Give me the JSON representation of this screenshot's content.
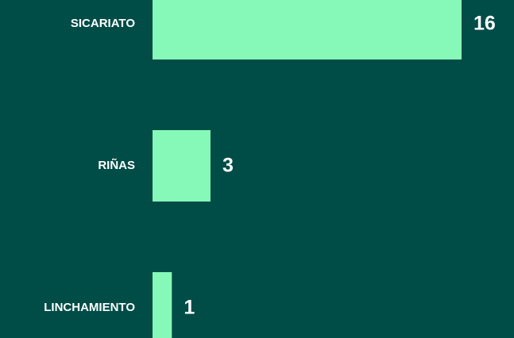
{
  "chart_data": {
    "type": "barh",
    "categories": [
      "SICARIATO",
      "RIÑAS",
      "LINCHAMIENTO"
    ],
    "values": [
      16,
      3,
      1
    ],
    "color": "#86f9b8",
    "background": "#004c47"
  }
}
